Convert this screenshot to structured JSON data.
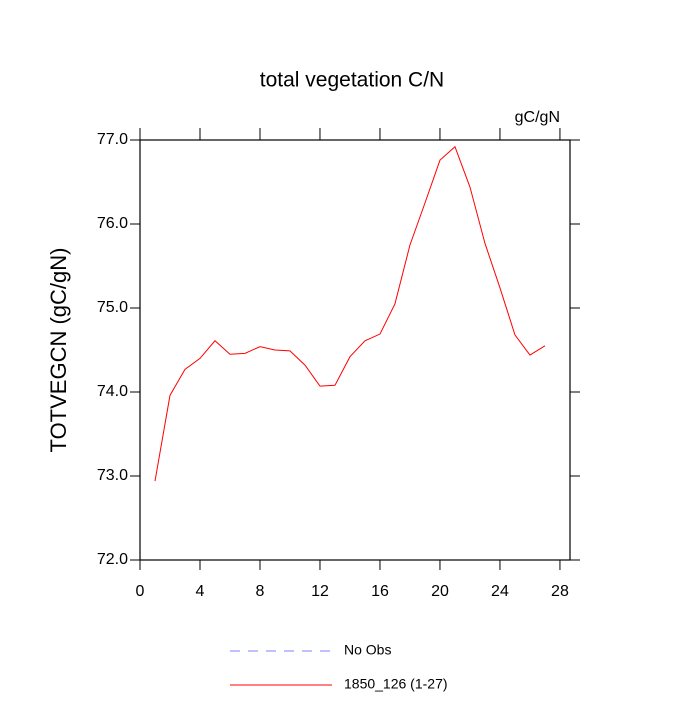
{
  "chart_data": {
    "type": "line",
    "title": "total vegetation C/N",
    "units": "gC/gN",
    "y_label": "TOTVEGCN  (gC/gN)",
    "x": [
      1,
      2,
      3,
      4,
      5,
      6,
      7,
      8,
      9,
      10,
      11,
      12,
      13,
      14,
      15,
      16,
      17,
      18,
      19,
      20,
      21,
      22,
      23,
      24,
      25,
      26,
      27
    ],
    "series": [
      {
        "name": "No Obs",
        "color": "#8080ff",
        "dashed": true,
        "values": [
          null,
          null,
          null,
          null,
          null,
          null,
          null,
          null,
          null,
          null,
          null,
          null,
          null,
          null,
          null,
          null,
          null,
          null,
          null,
          null,
          null,
          null,
          null,
          null,
          null,
          null,
          null
        ]
      },
      {
        "name": "1850_126 (1-27)",
        "color": "#ff0000",
        "dashed": false,
        "values": [
          72.94,
          73.96,
          74.27,
          74.4,
          74.61,
          74.45,
          74.46,
          74.54,
          74.5,
          74.49,
          74.32,
          74.07,
          74.08,
          74.42,
          74.61,
          74.69,
          75.05,
          75.75,
          76.25,
          76.76,
          76.92,
          76.44,
          75.77,
          75.24,
          74.68,
          74.44,
          74.55
        ]
      }
    ],
    "xlim": [
      0,
      28.67
    ],
    "xticks": [
      0,
      4,
      8,
      12,
      16,
      20,
      24,
      28
    ],
    "ylim": [
      72,
      77
    ],
    "yticks": [
      {
        "value": 72,
        "label": "72.0"
      },
      {
        "value": 73,
        "label": "73.0"
      },
      {
        "value": 74,
        "label": "74.0"
      },
      {
        "value": 75,
        "label": "75.0"
      },
      {
        "value": 76,
        "label": "76.0"
      },
      {
        "value": 77,
        "label": "77.0"
      }
    ]
  }
}
